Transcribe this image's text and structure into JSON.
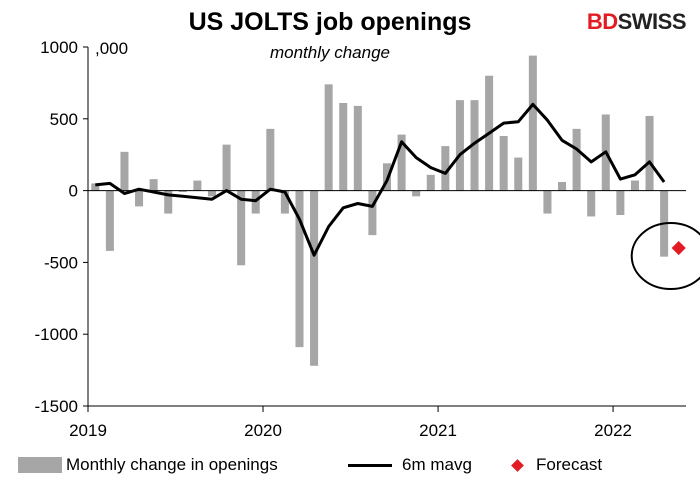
{
  "brand": {
    "part1": "BD",
    "part2": "SWISS",
    "accent_color": "#e31b23"
  },
  "chart_data": {
    "type": "bar",
    "title": "US JOLTS job openings",
    "subtitle": "monthly change",
    "ylabel": ",000",
    "ylim": [
      -1500,
      1000
    ],
    "yticks": [
      1000,
      500,
      0,
      -500,
      -1000,
      -1500
    ],
    "ytick_labels": [
      "1000",
      "500",
      "0",
      "-500",
      "-1000",
      "-1500"
    ],
    "xticks": [
      {
        "label": "2019",
        "month_index": 0
      },
      {
        "label": "2020",
        "month_index": 12
      },
      {
        "label": "2021",
        "month_index": 24
      },
      {
        "label": "2022",
        "month_index": 36
      }
    ],
    "months": [
      "2019-01",
      "2019-02",
      "2019-03",
      "2019-04",
      "2019-05",
      "2019-06",
      "2019-07",
      "2019-08",
      "2019-09",
      "2019-10",
      "2019-11",
      "2019-12",
      "2020-01",
      "2020-02",
      "2020-03",
      "2020-04",
      "2020-05",
      "2020-06",
      "2020-07",
      "2020-08",
      "2020-09",
      "2020-10",
      "2020-11",
      "2020-12",
      "2021-01",
      "2021-02",
      "2021-03",
      "2021-04",
      "2021-05",
      "2021-06",
      "2021-07",
      "2021-08",
      "2021-09",
      "2021-10",
      "2021-11",
      "2021-12",
      "2022-01",
      "2022-02",
      "2022-03",
      "2022-04",
      "2022-05"
    ],
    "series": [
      {
        "name": "Monthly change in openings",
        "type": "bar",
        "color": "#a6a6a6",
        "values": [
          50,
          -420,
          270,
          -110,
          80,
          -160,
          -10,
          70,
          -40,
          320,
          -520,
          -160,
          430,
          -160,
          -1090,
          -1220,
          740,
          610,
          590,
          -310,
          190,
          390,
          -40,
          110,
          310,
          630,
          630,
          800,
          380,
          230,
          940,
          -160,
          60,
          430,
          -180,
          530,
          -170,
          70,
          520,
          -460,
          null
        ]
      },
      {
        "name": "6m mavg",
        "type": "line",
        "color": "#000000",
        "values": [
          40,
          50,
          -20,
          10,
          -10,
          -30,
          -40,
          -50,
          -60,
          0,
          -60,
          -70,
          10,
          -10,
          -200,
          -450,
          -250,
          -120,
          -90,
          -110,
          70,
          340,
          230,
          160,
          120,
          250,
          330,
          400,
          470,
          480,
          600,
          490,
          350,
          290,
          200,
          270,
          80,
          110,
          200,
          60,
          null
        ]
      },
      {
        "name": "Forecast",
        "type": "point",
        "color": "#e31b23",
        "values": [
          null,
          null,
          null,
          null,
          null,
          null,
          null,
          null,
          null,
          null,
          null,
          null,
          null,
          null,
          null,
          null,
          null,
          null,
          null,
          null,
          null,
          null,
          null,
          null,
          null,
          null,
          null,
          null,
          null,
          null,
          null,
          null,
          null,
          null,
          null,
          null,
          null,
          null,
          null,
          null,
          -400
        ]
      }
    ],
    "annotation": {
      "type": "circle",
      "around": "Forecast"
    },
    "legend_position": "bottom",
    "grid": false
  }
}
